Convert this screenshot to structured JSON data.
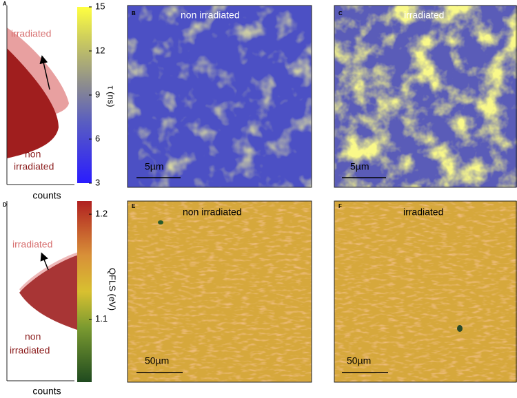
{
  "rows": [
    {
      "histogram": {
        "label": "A",
        "upper": "irradiated",
        "lower": [
          "non",
          "irradiated"
        ],
        "xlabel": "counts"
      },
      "colorbar": {
        "label": "τ (ns)",
        "lim": [
          3,
          15
        ],
        "ticks": [
          3,
          6,
          9,
          12,
          15
        ]
      },
      "maps": [
        {
          "label": "B",
          "title": "non irradiated",
          "scale": "5µm"
        },
        {
          "label": "C",
          "title": "irradiated",
          "scale": "5µm"
        }
      ]
    },
    {
      "histogram": {
        "label": "D",
        "upper": "irradiated",
        "lower": [
          "non",
          "irradiated"
        ],
        "xlabel": "counts"
      },
      "colorbar": {
        "label": "QFLS (eV)",
        "lim": [
          1.04,
          1.2125
        ],
        "ticks": [
          1.1,
          1.2
        ]
      },
      "maps": [
        {
          "label": "E",
          "title": "non irradiated",
          "scale": "50µm"
        },
        {
          "label": "F",
          "title": "irradiated",
          "scale": "50µm"
        }
      ]
    }
  ]
}
